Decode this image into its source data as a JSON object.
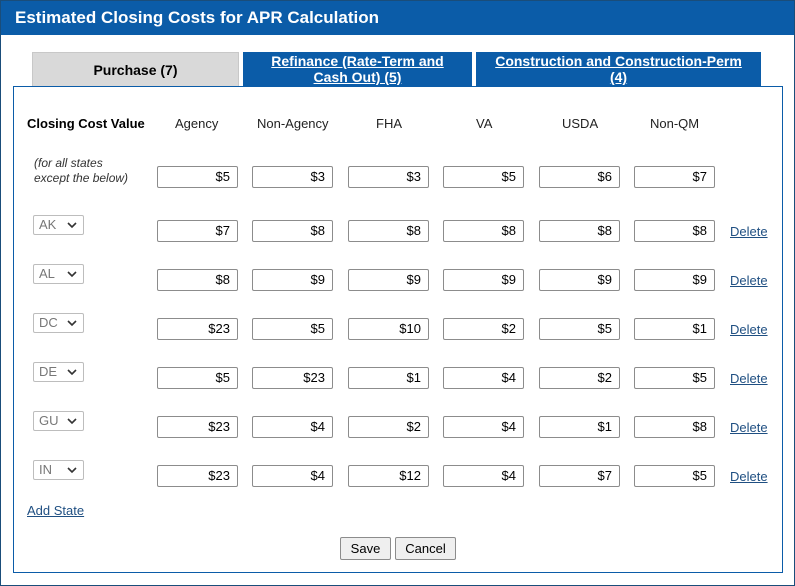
{
  "title": "Estimated Closing Costs for APR Calculation",
  "tabs": [
    {
      "label": "Purchase (7)",
      "active": true
    },
    {
      "label_line1": "Refinance (Rate-Term and",
      "label_line2": "Cash Out) (5)",
      "active": false
    },
    {
      "label_line1": "Construction and Construction-Perm",
      "label_line2": "(4)",
      "active": false
    }
  ],
  "columns": [
    "Closing Cost Value",
    "Agency",
    "Non-Agency",
    "FHA",
    "VA",
    "USDA",
    "Non-QM"
  ],
  "default_row": {
    "note_line1": "(for all states",
    "note_line2": "except the below)",
    "values": [
      "$5",
      "$3",
      "$3",
      "$5",
      "$6",
      "$7"
    ]
  },
  "rows": [
    {
      "state": "AK",
      "values": [
        "$7",
        "$8",
        "$8",
        "$8",
        "$8",
        "$8"
      ],
      "delete": "Delete"
    },
    {
      "state": "AL",
      "values": [
        "$8",
        "$9",
        "$9",
        "$9",
        "$9",
        "$9"
      ],
      "delete": "Delete"
    },
    {
      "state": "DC",
      "values": [
        "$23",
        "$5",
        "$10",
        "$2",
        "$5",
        "$1"
      ],
      "delete": "Delete"
    },
    {
      "state": "DE",
      "values": [
        "$5",
        "$23",
        "$1",
        "$4",
        "$2",
        "$5"
      ],
      "delete": "Delete"
    },
    {
      "state": "GU",
      "values": [
        "$23",
        "$4",
        "$2",
        "$4",
        "$1",
        "$8"
      ],
      "delete": "Delete"
    },
    {
      "state": "IN",
      "values": [
        "$23",
        "$4",
        "$12",
        "$4",
        "$7",
        "$5"
      ],
      "delete": "Delete"
    }
  ],
  "add_state": "Add State",
  "buttons": {
    "save": "Save",
    "cancel": "Cancel"
  },
  "colors": {
    "primary": "#0b5ca8",
    "link": "#1f4f82",
    "tab_inactive_bg": "#d9d9d9"
  }
}
